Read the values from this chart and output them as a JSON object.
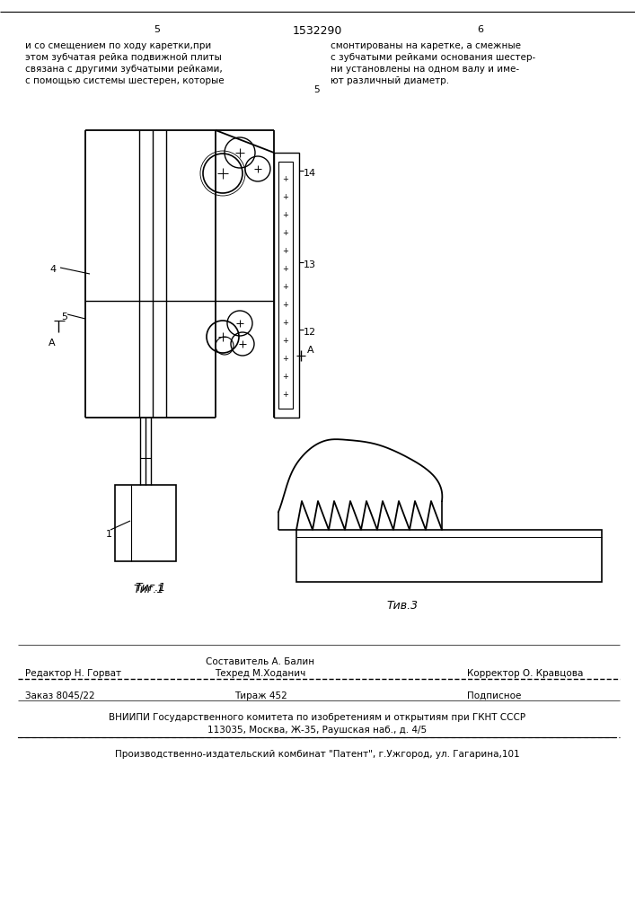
{
  "bg_color": "#ffffff",
  "title_text": "1532290",
  "page_left": "5",
  "page_right": "6",
  "text_left": "и со смещением по ходу каретки,при\nэтом зубчатая рейка подвижной плиты\nсвязана с другими зубчатыми рейками,\nс помощью системы шестерен, которые",
  "text_right": "смонтированы на каретке, а смежные\nс зубчатыми рейками основания шестер-\nни установлены на одном валу и име-\nют различный диаметр.",
  "num5_mid": "5",
  "fig1_label": "Τиг.1",
  "fig3_label": "Τив.3",
  "label_1": "1",
  "label_4": "4",
  "label_5": "5",
  "label_12": "12",
  "label_13": "13",
  "label_14": "14",
  "label_A": "A",
  "editor_label": "Редактор Н. Горват",
  "composer_label": "Составитель А. Балин",
  "techred_label": "Техред М.Ходанич",
  "corrector_label": "Корректор О. Кравцова",
  "order_label": "Заказ 8045/22",
  "tirazh_label": "Тираж 452",
  "podp_label": "Подписное",
  "vniiipi_line1": "ВНИИПИ Государственного комитета по изобретениям и открытиям при ГКНТ СССР",
  "vniiipi_line2": "113035, Москва, Ж-35, Раушская наб., д. 4/5",
  "production_line": "Производственно-издательский комбинат \"Патент\", г.Ужгород, ул. Гагарина,101"
}
